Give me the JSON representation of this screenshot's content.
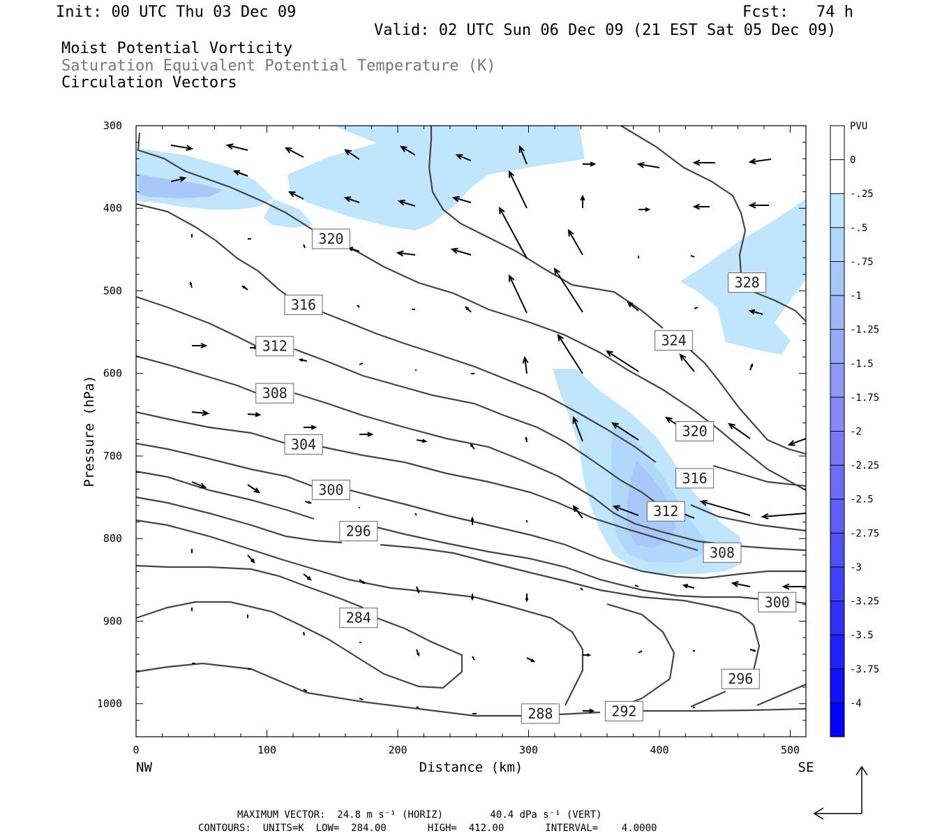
{
  "header": {
    "init": "Init: 00 UTC Thu 03 Dec 09",
    "fcst": "Fcst:   74 h",
    "valid": "Valid: 02 UTC Sun 06 Dec 09 (21 EST Sat 05 Dec 09)",
    "field1": "Moist Potential Vorticity",
    "field2": "Saturation Equivalent Potential Temperature (K)",
    "field3": "Circulation Vectors"
  },
  "footer": {
    "line1": "MAXIMUM VECTOR:  24.8 m s⁻¹ (HORIZ)        40.4 dPa s⁻¹ (VERT)",
    "line2": "CONTOURS:  UNITS=K  LOW=  284.00       HIGH=  412.00       INTERVAL=    4.0000"
  },
  "chart_data": {
    "type": "cross-section",
    "xlabel": "Distance (km)",
    "ylabel": "Pressure (hPa)",
    "xlim": [
      0,
      512
    ],
    "ylim": [
      1040,
      300
    ],
    "x_ticks": [
      0,
      100,
      200,
      300,
      400,
      500
    ],
    "y_ticks": [
      300,
      400,
      500,
      600,
      700,
      800,
      900,
      1000
    ],
    "x_end_labels": {
      "left": "NW",
      "right": "SE"
    },
    "colorbar": {
      "unit": "PVU",
      "ticks": [
        "0",
        "-.25",
        "-.5",
        "-.75",
        "-1",
        "-1.25",
        "-1.5",
        "-1.75",
        "-2",
        "-2.25",
        "-2.5",
        "-2.75",
        "-3",
        "-3.25",
        "-3.5",
        "-3.75",
        "-4"
      ],
      "colors": [
        "#ffffff",
        "#ffffff",
        "#bfe6fd",
        "#b0d8fb",
        "#a8c8fa",
        "#a0b8f9",
        "#98a8f8",
        "#9098f7",
        "#8888f6",
        "#7878f6",
        "#6c6cf6",
        "#5e5ef7",
        "#5050f8",
        "#4040f9",
        "#3030fa",
        "#2020fc",
        "#1010fd",
        "#0000ff"
      ]
    },
    "contour_labels": [
      {
        "text": "320",
        "x": 149,
        "p": 437
      },
      {
        "text": "316",
        "x": 128,
        "p": 517
      },
      {
        "text": "312",
        "x": 106,
        "p": 567
      },
      {
        "text": "308",
        "x": 106,
        "p": 624
      },
      {
        "text": "304",
        "x": 128,
        "p": 686
      },
      {
        "text": "300",
        "x": 149,
        "p": 741
      },
      {
        "text": "296",
        "x": 170,
        "p": 791
      },
      {
        "text": "284",
        "x": 170,
        "p": 896
      },
      {
        "text": "288",
        "x": 309,
        "p": 1012
      },
      {
        "text": "292",
        "x": 373,
        "p": 1009
      },
      {
        "text": "296",
        "x": 462,
        "p": 970
      },
      {
        "text": "300",
        "x": 490,
        "p": 877
      },
      {
        "text": "308",
        "x": 448,
        "p": 817
      },
      {
        "text": "312",
        "x": 405,
        "p": 767
      },
      {
        "text": "316",
        "x": 427,
        "p": 727
      },
      {
        "text": "320",
        "x": 427,
        "p": 670
      },
      {
        "text": "324",
        "x": 411,
        "p": 560
      },
      {
        "text": "328",
        "x": 467,
        "p": 490
      }
    ]
  }
}
